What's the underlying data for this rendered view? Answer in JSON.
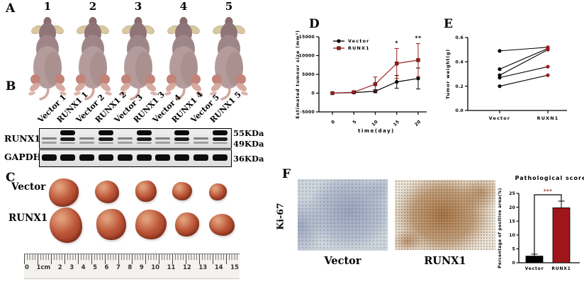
{
  "panels": {
    "A": {
      "letter": "A",
      "mouse_numbers": [
        "1",
        "2",
        "3",
        "4",
        "5"
      ]
    },
    "B": {
      "letter": "B",
      "lane_labels": [
        "Vector 1",
        "RUNX1 1",
        "Vector 2",
        "RUNX1 2",
        "Vector 3",
        "RUNX1 3",
        "Vector 4",
        "RUNX1 4",
        "Vector 5",
        "RUNX1 5"
      ],
      "blot_rows": [
        {
          "protein": "RUNX1",
          "markers": [
            "55KDa",
            "49KDa"
          ]
        },
        {
          "protein": "GAPDH",
          "markers": [
            "36KDa"
          ]
        }
      ]
    },
    "C": {
      "letter": "C",
      "rows": [
        {
          "label": "Vector",
          "relative_sizes": [
            [
              42,
              40
            ],
            [
              34,
              32
            ],
            [
              30,
              30
            ],
            [
              28,
              26
            ],
            [
              25,
              24
            ]
          ]
        },
        {
          "label": "RUNX1",
          "relative_sizes": [
            [
              46,
              50
            ],
            [
              42,
              44
            ],
            [
              44,
              42
            ],
            [
              34,
              34
            ],
            [
              36,
              31
            ]
          ]
        }
      ],
      "ruler_numbers": [
        "0",
        "1cm",
        "2",
        "3",
        "4",
        "5",
        "6",
        "7",
        "8",
        "9",
        "10",
        "11",
        "12",
        "13",
        "14",
        "15"
      ]
    },
    "D": {
      "letter": "D"
    },
    "E": {
      "letter": "E"
    },
    "F": {
      "letter": "F",
      "stain_label": "Ki-67",
      "image_labels": [
        "Vector",
        "RUNX1"
      ]
    }
  },
  "colors": {
    "dark_red": "#9B1B1B",
    "bar_red": "#A01518",
    "black": "#000000"
  },
  "chart_data": [
    {
      "id": "estimated-tumour-size",
      "type": "line",
      "xlabel": "time(day)",
      "ylabel": "Estimated tumour size (mm³)",
      "x": [
        0,
        5,
        10,
        15,
        20
      ],
      "xtick_labels": [
        "0",
        "5",
        "10",
        "15",
        "20"
      ],
      "ylim": [
        -5000,
        15000
      ],
      "yticks": [
        -5000,
        0,
        5000,
        10000,
        15000
      ],
      "ytick_labels": [
        "-5000",
        "0",
        "5000",
        "10000",
        "15000"
      ],
      "legend_position": "top-left",
      "series": [
        {
          "name": "Vector",
          "color": "#000000",
          "marker": "circle",
          "values": [
            0,
            150,
            500,
            3000,
            3900
          ],
          "errors": [
            0,
            100,
            400,
            1700,
            2800
          ]
        },
        {
          "name": "RUNX1",
          "color": "#9B1B1B",
          "marker": "square",
          "values": [
            0,
            250,
            2400,
            7900,
            8800
          ],
          "errors": [
            0,
            150,
            1900,
            4000,
            4400
          ]
        }
      ],
      "annotations": [
        {
          "x": 15,
          "text": "*"
        },
        {
          "x": 20,
          "text": "**"
        }
      ]
    },
    {
      "id": "tumor-weight",
      "type": "paired",
      "ylabel": "Tumor weight(g)",
      "categories": [
        "Vector",
        "RUXN1"
      ],
      "ylim": [
        0,
        0.6
      ],
      "yticks": [
        0,
        0.2,
        0.4,
        0.6
      ],
      "ytick_labels": [
        "0.0",
        "0.2",
        "0.4",
        "0.6"
      ],
      "point_colors": [
        "#000000",
        "#9B1B1B"
      ],
      "pairs": [
        [
          0.49,
          0.52
        ],
        [
          0.34,
          0.51
        ],
        [
          0.29,
          0.5
        ],
        [
          0.27,
          0.36
        ],
        [
          0.2,
          0.29
        ]
      ]
    },
    {
      "id": "pathological-score",
      "type": "bar",
      "title": "Pathological score",
      "ylabel": "Percentage of positive area(%)",
      "categories": [
        "Vector",
        "RUNX1"
      ],
      "values": [
        2.4,
        19.8
      ],
      "errors": [
        0.7,
        2.4
      ],
      "bar_colors": [
        "#000000",
        "#A01518"
      ],
      "ylim": [
        0,
        25
      ],
      "yticks": [
        0,
        5,
        10,
        15,
        20,
        25
      ],
      "ytick_labels": [
        "0",
        "5",
        "10",
        "15",
        "20",
        "25"
      ],
      "significance": "***"
    }
  ]
}
